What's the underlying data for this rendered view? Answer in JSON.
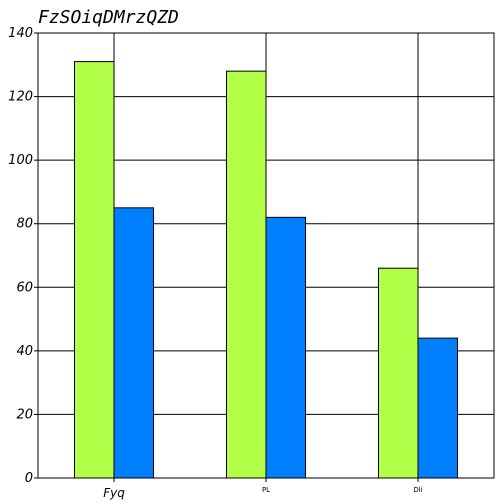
{
  "chart_data": {
    "type": "bar",
    "title": "FzSOiqDMrzQZD",
    "xlabel": "",
    "ylabel": "",
    "categories": [
      "Fyq",
      "PL",
      "Dli"
    ],
    "series": [
      {
        "values": [
          131,
          128,
          66
        ],
        "color": "#b2ff48"
      },
      {
        "values": [
          85,
          82,
          44
        ],
        "color": "#0080ff"
      }
    ],
    "ylim": [
      0,
      140
    ],
    "yticks": [
      0,
      20,
      40,
      60,
      80,
      100,
      120,
      140
    ],
    "grid": true,
    "legend": "none"
  }
}
